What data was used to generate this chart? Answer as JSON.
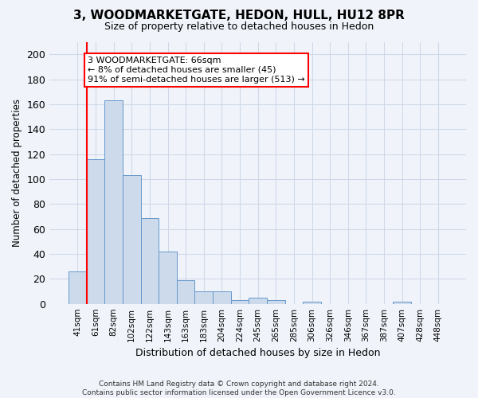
{
  "title": "3, WOODMARKETGATE, HEDON, HULL, HU12 8PR",
  "subtitle": "Size of property relative to detached houses in Hedon",
  "xlabel": "Distribution of detached houses by size in Hedon",
  "ylabel": "Number of detached properties",
  "bar_color": "#ccdaeb",
  "bar_edge_color": "#6699cc",
  "categories": [
    "41sqm",
    "61sqm",
    "82sqm",
    "102sqm",
    "122sqm",
    "143sqm",
    "163sqm",
    "183sqm",
    "204sqm",
    "224sqm",
    "245sqm",
    "265sqm",
    "285sqm",
    "306sqm",
    "326sqm",
    "346sqm",
    "367sqm",
    "387sqm",
    "407sqm",
    "428sqm",
    "448sqm"
  ],
  "values": [
    26,
    116,
    163,
    103,
    69,
    42,
    19,
    10,
    10,
    3,
    5,
    3,
    0,
    2,
    0,
    0,
    0,
    0,
    2,
    0,
    0
  ],
  "ylim": [
    0,
    210
  ],
  "yticks": [
    0,
    20,
    40,
    60,
    80,
    100,
    120,
    140,
    160,
    180,
    200
  ],
  "annotation_line1": "3 WOODMARKETGATE: 66sqm",
  "annotation_line2": "← 8% of detached houses are smaller (45)",
  "annotation_line3": "91% of semi-detached houses are larger (513) →",
  "vline_x": 0.5,
  "footer": "Contains HM Land Registry data © Crown copyright and database right 2024.\nContains public sector information licensed under the Open Government Licence v3.0.",
  "background_color": "#f0f4fa",
  "plot_bg_color": "#f0f4fa",
  "grid_color": "#d0d8e8"
}
